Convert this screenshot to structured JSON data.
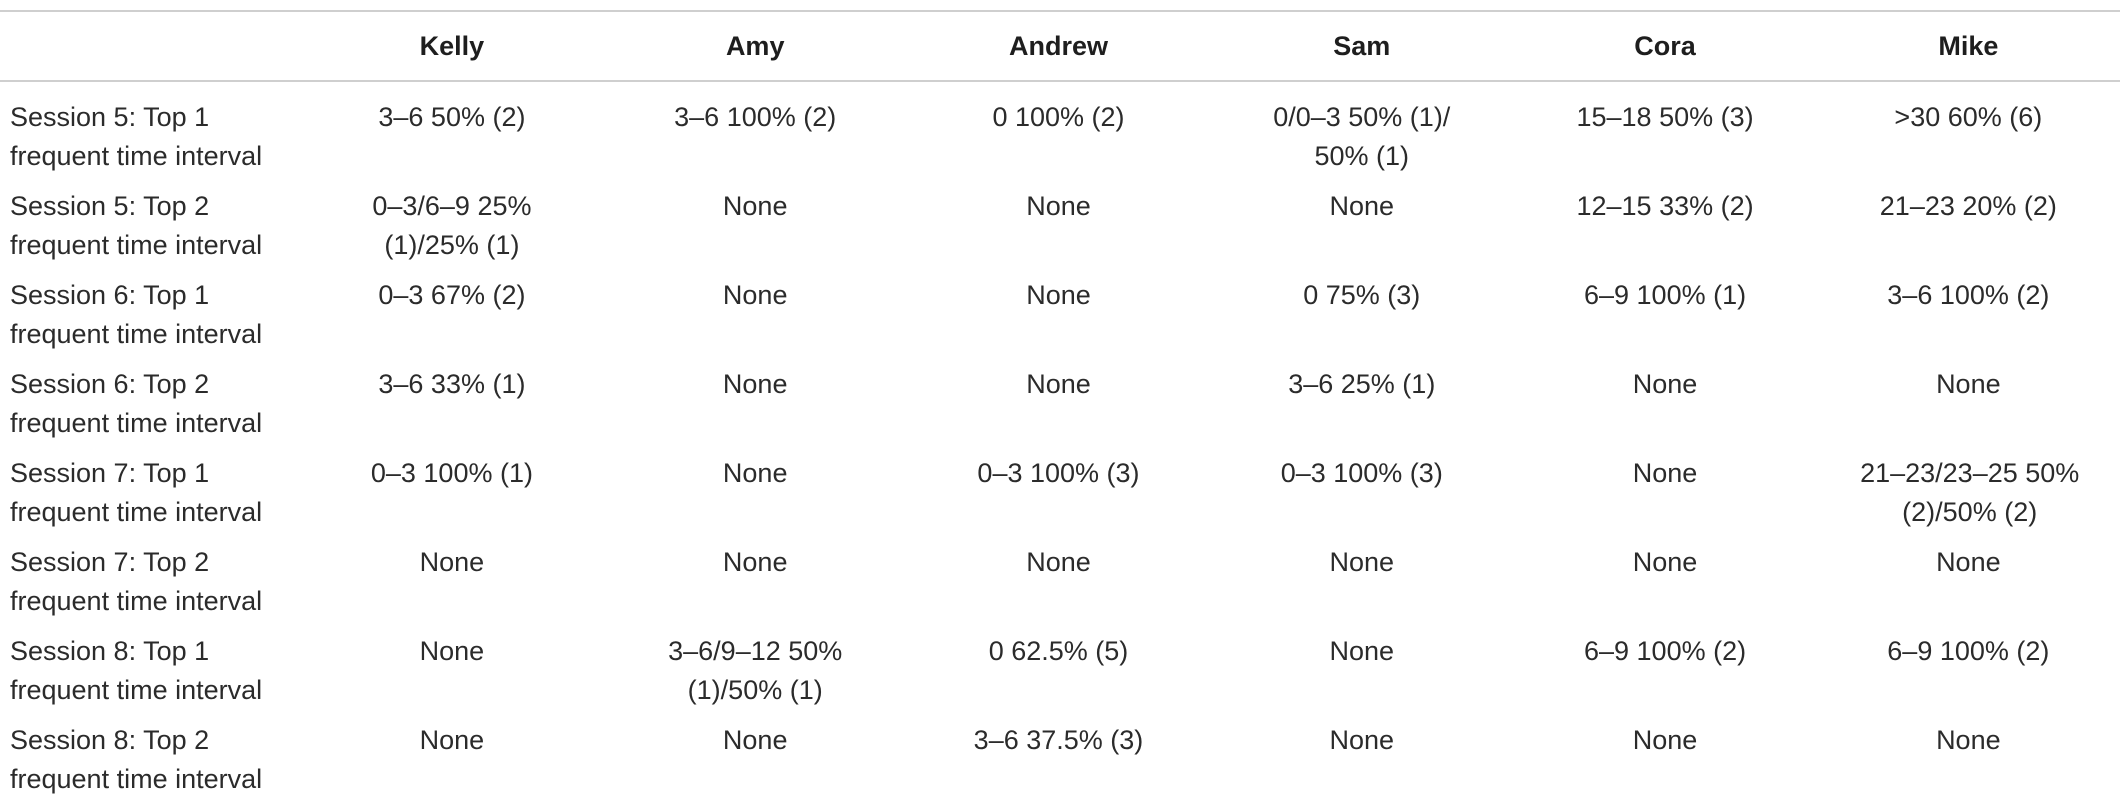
{
  "table": {
    "corner": "",
    "columns": [
      "Kelly",
      "Amy",
      "Andrew",
      "Sam",
      "Cora",
      "Mike"
    ],
    "rows": [
      {
        "label": "Session 5: Top 1 frequent time interval",
        "cells": [
          "3–6 50% (2)",
          "3–6 100% (2)",
          "0 100% (2)",
          "0/0–3 50% (1)/ 50% (1)",
          "15–18 50% (3)",
          ">30 60% (6)"
        ]
      },
      {
        "label": "Session 5: Top 2 frequent time interval",
        "cells": [
          "0–3/6–9 25% (1)/25% (1)",
          "None",
          "None",
          "None",
          "12–15 33% (2)",
          "21–23 20% (2)"
        ]
      },
      {
        "label": "Session 6: Top 1 frequent time interval",
        "cells": [
          "0–3 67% (2)",
          "None",
          "None",
          "0 75% (3)",
          "6–9 100% (1)",
          "3–6 100% (2)"
        ]
      },
      {
        "label": "Session 6: Top 2 frequent time interval",
        "cells": [
          "3–6 33% (1)",
          "None",
          "None",
          "3–6 25% (1)",
          "None",
          "None"
        ]
      },
      {
        "label": "Session 7: Top 1 frequent time interval",
        "cells": [
          "0–3 100% (1)",
          "None",
          "0–3 100% (3)",
          "0–3 100% (3)",
          "None",
          "21–23/23–25 50% (2)/50% (2)"
        ]
      },
      {
        "label": "Session 7: Top 2 frequent time interval",
        "cells": [
          "None",
          "None",
          "None",
          "None",
          "None",
          "None"
        ]
      },
      {
        "label": "Session 8: Top 1 frequent time interval",
        "cells": [
          "None",
          "3–6/9–12 50% (1)/50% (1)",
          "0 62.5% (5)",
          "None",
          "6–9 100% (2)",
          "6–9 100% (2)"
        ]
      },
      {
        "label": "Session 8: Top 2 frequent time interval",
        "cells": [
          "None",
          "None",
          "3–6 37.5% (3)",
          "None",
          "None",
          "None"
        ]
      }
    ]
  }
}
